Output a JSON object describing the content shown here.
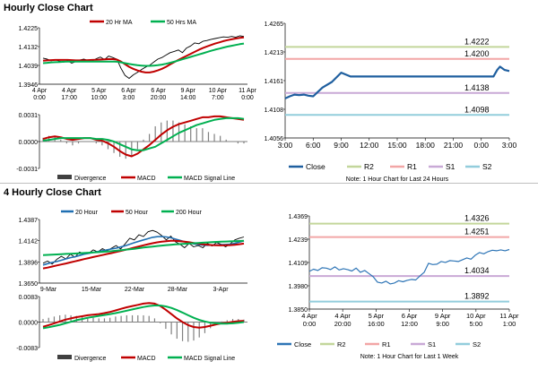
{
  "chart_data": [
    {
      "id": "hourly_price",
      "type": "line",
      "section_title": "Hourly Close Chart",
      "legend": [
        "20 Hr MA",
        "50 Hrs MA"
      ],
      "colors": {
        "price": "#000000",
        "ma1": "#c00000",
        "ma2": "#00b050"
      },
      "ylim": [
        1.3946,
        1.4225
      ],
      "yticks": [
        "1.4225",
        "1.4132",
        "1.4039",
        "1.3946"
      ],
      "xlabels": [
        [
          "4 Apr",
          "0:00"
        ],
        [
          "4 Apr",
          "17:00"
        ],
        [
          "5 Apr",
          "10:00"
        ],
        [
          "6 Apr",
          "3:00"
        ],
        [
          "6 Apr",
          "20:00"
        ],
        [
          "9 Apr",
          "14:00"
        ],
        [
          "10 Apr",
          "7:00"
        ],
        [
          "11 Apr",
          "0:00"
        ]
      ],
      "series": [
        {
          "name": "Close",
          "values": [
            1.4075,
            1.407,
            1.4062,
            1.4068,
            1.406,
            1.4055,
            1.4062,
            1.405,
            1.4058,
            1.4066,
            1.407,
            1.4064,
            1.406,
            1.4072,
            1.408,
            1.4068,
            1.4085,
            1.4078,
            1.407,
            1.4025,
            1.399,
            1.3975,
            1.3992,
            1.4004,
            1.4018,
            1.403,
            1.404,
            1.4055,
            1.407,
            1.4078,
            1.409,
            1.4102,
            1.4108,
            1.4115,
            1.4102,
            1.4125,
            1.4135,
            1.415,
            1.4146,
            1.4158,
            1.4162,
            1.4168,
            1.4172,
            1.4176,
            1.418,
            1.4178,
            1.4182,
            1.4178,
            1.4185,
            1.4182
          ]
        },
        {
          "name": "20 Hr MA",
          "values": [
            1.4062,
            1.4064,
            1.4065,
            1.4066,
            1.4066,
            1.4066,
            1.4066,
            1.4065,
            1.4064,
            1.4064,
            1.4064,
            1.4065,
            1.4066,
            1.4067,
            1.4068,
            1.4069,
            1.407,
            1.407,
            1.4068,
            1.4058,
            1.4045,
            1.4032,
            1.4022,
            1.4014,
            1.4008,
            1.4004,
            1.4004,
            1.4008,
            1.4014,
            1.4022,
            1.4032,
            1.4044,
            1.4055,
            1.4066,
            1.4076,
            1.4086,
            1.4096,
            1.4106,
            1.4116,
            1.4125,
            1.4133,
            1.414,
            1.4147,
            1.4153,
            1.4159,
            1.4164,
            1.4168,
            1.4172,
            1.4175,
            1.4177
          ]
        },
        {
          "name": "50 Hrs MA",
          "values": [
            1.405,
            1.4052,
            1.4054,
            1.4055,
            1.4056,
            1.4057,
            1.4058,
            1.4058,
            1.4058,
            1.4058,
            1.4058,
            1.4058,
            1.4058,
            1.4058,
            1.4058,
            1.4058,
            1.4058,
            1.4058,
            1.4057,
            1.4054,
            1.405,
            1.4046,
            1.4043,
            1.404,
            1.4038,
            1.4037,
            1.4037,
            1.4038,
            1.404,
            1.4043,
            1.4047,
            1.4052,
            1.4057,
            1.4063,
            1.4069,
            1.4075,
            1.4081,
            1.4087,
            1.4093,
            1.4099,
            1.4105,
            1.4111,
            1.4117,
            1.4122,
            1.4127,
            1.4132,
            1.4136,
            1.414,
            1.4144,
            1.4147
          ]
        }
      ]
    },
    {
      "id": "hourly_macd",
      "type": "line",
      "ylim": [
        -0.0031,
        0.0031
      ],
      "yticks": [
        "0.0031",
        "0.0000",
        "-0.0031"
      ],
      "legend": [
        "Divergence",
        "MACD",
        "MACD Signal Line"
      ],
      "colors": {
        "div": "#808080",
        "macd": "#c00000",
        "signal": "#00b050"
      },
      "series": [
        {
          "name": "MACD",
          "values": [
            0.0003,
            0.0005,
            0.0006,
            0.0005,
            0.0003,
            0.0002,
            0.0003,
            0.0004,
            0.0004,
            0.0002,
            0.0001,
            -0.0002,
            -0.0006,
            -0.0011,
            -0.0015,
            -0.0017,
            -0.0014,
            -0.0009,
            -0.0004,
            0.0002,
            0.0008,
            0.0013,
            0.0017,
            0.002,
            0.0022,
            0.0024,
            0.0026,
            0.0028,
            0.0028,
            0.0029,
            0.0029,
            0.0028,
            0.0027,
            0.0026,
            0.0025
          ]
        },
        {
          "name": "MACD Signal Line",
          "values": [
            0.0001,
            0.0002,
            0.0003,
            0.0004,
            0.0004,
            0.0004,
            0.0004,
            0.0004,
            0.0004,
            0.0003,
            0.0003,
            0.0002,
            0.0,
            -0.0003,
            -0.0006,
            -0.0009,
            -0.001,
            -0.001,
            -0.0008,
            -0.0006,
            -0.0002,
            0.0002,
            0.0006,
            0.001,
            0.0013,
            0.0016,
            0.0019,
            0.0021,
            0.0023,
            0.0025,
            0.0026,
            0.0027,
            0.0027,
            0.0027,
            0.0026
          ]
        }
      ]
    },
    {
      "id": "hourly_levels",
      "type": "line",
      "ylim": [
        1.4056,
        1.4265
      ],
      "yticks": [
        "1.4265",
        "1.4213",
        "1.4161",
        "1.4108",
        "1.4056"
      ],
      "xlabels": [
        "3:00",
        "6:00",
        "9:00",
        "12:00",
        "15:00",
        "18:00",
        "21:00",
        "0:00",
        "3:00"
      ],
      "levels": [
        {
          "name": "R2",
          "value": 1.4222,
          "label": "1.4222",
          "color": "#c3d69b"
        },
        {
          "name": "R1",
          "value": 1.42,
          "label": "1.4200",
          "color": "#f2a6a6"
        },
        {
          "name": "S1",
          "value": 1.4138,
          "label": "1.4138",
          "color": "#c9a9d6"
        },
        {
          "name": "S2",
          "value": 1.4098,
          "label": "1.4098",
          "color": "#92cddc"
        }
      ],
      "series": [
        {
          "name": "Close",
          "color": "#1f5f9f",
          "x": [
            0,
            0.5,
            1,
            1.5,
            2,
            2.5,
            3,
            3.5,
            4,
            5,
            6,
            7,
            7.5,
            8,
            8.5,
            9,
            10,
            11,
            12,
            13,
            14,
            15,
            16,
            17,
            18,
            19,
            20,
            21,
            22,
            22.3,
            22.7,
            23,
            23.5,
            24
          ],
          "values": [
            1.4128,
            1.4132,
            1.4135,
            1.4134,
            1.4135,
            1.4133,
            1.4132,
            1.414,
            1.4148,
            1.4158,
            1.4175,
            1.4168,
            1.4168,
            1.4168,
            1.4168,
            1.4168,
            1.4168,
            1.4168,
            1.4168,
            1.4168,
            1.4168,
            1.4168,
            1.4168,
            1.4168,
            1.4168,
            1.4168,
            1.4168,
            1.4168,
            1.4168,
            1.4168,
            1.418,
            1.4186,
            1.418,
            1.4178
          ]
        }
      ],
      "legend": [
        "Close",
        "R2",
        "R1",
        "S1",
        "S2"
      ],
      "note": "Note: 1 Hour Chart for Last 24 Hours"
    },
    {
      "id": "4h_price",
      "type": "line",
      "section_title": "4 Hourly Close Chart",
      "legend": [
        "20 Hour",
        "50 Hour",
        "200 Hour"
      ],
      "colors": {
        "price": "#000000",
        "ma20": "#1f6fb2",
        "ma50": "#c00000",
        "ma200": "#00b050"
      },
      "ylim": [
        1.365,
        1.4387
      ],
      "yticks": [
        "1.4387",
        "1.4142",
        "1.3896",
        "1.3650"
      ],
      "xlabels": [
        "9-Mar",
        "15-Mar",
        "22-Mar",
        "28-Mar",
        "3-Apr"
      ],
      "series": [
        {
          "name": "Close",
          "values": [
            1.388,
            1.3905,
            1.387,
            1.3925,
            1.396,
            1.393,
            1.3985,
            1.395,
            1.401,
            1.3985,
            1.3995,
            1.4035,
            1.401,
            1.405,
            1.4025,
            1.4055,
            1.4085,
            1.4045,
            1.4105,
            1.417,
            1.415,
            1.421,
            1.419,
            1.4245,
            1.426,
            1.424,
            1.42,
            1.415,
            1.4195,
            1.413,
            1.41,
            1.406,
            1.411,
            1.407,
            1.4085,
            1.406,
            1.411,
            1.408,
            1.412,
            1.41,
            1.407,
            1.4105,
            1.415,
            1.417,
            1.4185
          ]
        },
        {
          "name": "20 Hour",
          "values": [
            1.386,
            1.3875,
            1.389,
            1.39,
            1.3915,
            1.393,
            1.3945,
            1.3955,
            1.397,
            1.3985,
            1.3995,
            1.4005,
            1.4015,
            1.4025,
            1.4035,
            1.4045,
            1.4055,
            1.4068,
            1.4082,
            1.41,
            1.4118,
            1.4135,
            1.415,
            1.4165,
            1.418,
            1.4188,
            1.419,
            1.4185,
            1.4175,
            1.416,
            1.4145,
            1.413,
            1.4118,
            1.4105,
            1.4095,
            1.409,
            1.4088,
            1.409,
            1.4092,
            1.4095,
            1.4097,
            1.41,
            1.411,
            1.4125,
            1.414
          ]
        },
        {
          "name": "50 Hour",
          "values": [
            1.382,
            1.383,
            1.3842,
            1.3855,
            1.3866,
            1.3877,
            1.389,
            1.3902,
            1.3915,
            1.3928,
            1.394,
            1.3952,
            1.3963,
            1.3975,
            1.3987,
            1.3998,
            1.401,
            1.4022,
            1.4035,
            1.4048,
            1.4062,
            1.4075,
            1.4088,
            1.41,
            1.4112,
            1.4122,
            1.413,
            1.4136,
            1.414,
            1.414,
            1.4136,
            1.413,
            1.4123,
            1.4115,
            1.4108,
            1.41,
            1.4095,
            1.409,
            1.4088,
            1.4087,
            1.4088,
            1.409,
            1.4094,
            1.41,
            1.4108
          ]
        },
        {
          "name": "200 Hour",
          "values": [
            1.3975,
            1.3977,
            1.398,
            1.3982,
            1.3985,
            1.3988,
            1.399,
            1.3993,
            1.3996,
            1.3999,
            1.4002,
            1.4005,
            1.4008,
            1.4012,
            1.4016,
            1.402,
            1.4025,
            1.403,
            1.4036,
            1.4042,
            1.4048,
            1.4055,
            1.4062,
            1.4068,
            1.4074,
            1.408,
            1.4085,
            1.409,
            1.4094,
            1.4098,
            1.4102,
            1.4106,
            1.4109,
            1.4112,
            1.4115,
            1.4118,
            1.4121,
            1.4124,
            1.4127,
            1.413,
            1.4132,
            1.4134,
            1.4136,
            1.4138,
            1.414
          ]
        }
      ]
    },
    {
      "id": "4h_macd",
      "type": "line",
      "ylim": [
        -0.0083,
        0.0083
      ],
      "yticks": [
        "0.0083",
        "0.0000",
        "-0.0083"
      ],
      "legend": [
        "Divergence",
        "MACD",
        "MACD Signal Line"
      ],
      "colors": {
        "div": "#808080",
        "macd": "#c00000",
        "signal": "#00b050"
      },
      "series": [
        {
          "name": "MACD",
          "values": [
            -0.0015,
            -0.001,
            -0.0004,
            0.0002,
            0.0008,
            0.0012,
            0.0016,
            0.0019,
            0.0022,
            0.0024,
            0.0026,
            0.0029,
            0.0033,
            0.0038,
            0.0043,
            0.0048,
            0.0052,
            0.0056,
            0.006,
            0.0062,
            0.006,
            0.0052,
            0.004,
            0.0026,
            0.0012,
            0.0,
            -0.001,
            -0.0016,
            -0.0018,
            -0.0016,
            -0.0012,
            -0.0008,
            -0.0004,
            -0.0002,
            0.0001,
            0.0003,
            0.0004
          ]
        },
        {
          "name": "MACD Signal Line",
          "values": [
            -0.002,
            -0.0017,
            -0.0013,
            -0.0009,
            -0.0004,
            0.0001,
            0.0006,
            0.001,
            0.0014,
            0.0017,
            0.002,
            0.0023,
            0.0026,
            0.0029,
            0.0033,
            0.0037,
            0.0041,
            0.0045,
            0.0049,
            0.0052,
            0.0054,
            0.0054,
            0.0051,
            0.0046,
            0.0039,
            0.0031,
            0.0022,
            0.0014,
            0.0007,
            0.0002,
            -0.0002,
            -0.0004,
            -0.0005,
            -0.0005,
            -0.0004,
            -0.0002,
            0.0
          ]
        }
      ]
    },
    {
      "id": "4h_levels",
      "type": "line",
      "ylim": [
        1.385,
        1.4369
      ],
      "yticks": [
        "1.4369",
        "1.4239",
        "1.4109",
        "1.3980",
        "1.3850"
      ],
      "xlabels": [
        [
          "4 Apr",
          "0:00"
        ],
        [
          "4 Apr",
          "20:00"
        ],
        [
          "5 Apr",
          "16:00"
        ],
        [
          "6 Apr",
          "12:00"
        ],
        [
          "9 Apr",
          "9:00"
        ],
        [
          "10 Apr",
          "5:00"
        ],
        [
          "11 Apr",
          "1:00"
        ]
      ],
      "levels": [
        {
          "name": "R2",
          "value": 1.4326,
          "label": "1.4326",
          "color": "#c3d69b"
        },
        {
          "name": "R1",
          "value": 1.4251,
          "label": "1.4251",
          "color": "#f2a6a6"
        },
        {
          "name": "S1",
          "value": 1.4034,
          "label": "1.4034",
          "color": "#c9a9d6"
        },
        {
          "name": "S2",
          "value": 1.3892,
          "label": "1.3892",
          "color": "#92cddc"
        }
      ],
      "series": [
        {
          "name": "Close",
          "color": "#2e75b6",
          "values": [
            1.406,
            1.4072,
            1.4065,
            1.408,
            1.4078,
            1.407,
            1.4085,
            1.4068,
            1.4075,
            1.407,
            1.4062,
            1.4078,
            1.4055,
            1.4065,
            1.4048,
            1.403,
            1.4,
            1.3995,
            1.4005,
            1.399,
            1.3995,
            1.4008,
            1.4002,
            1.401,
            1.4015,
            1.4012,
            1.4035,
            1.4055,
            1.4105,
            1.4098,
            1.41,
            1.4115,
            1.411,
            1.412,
            1.4118,
            1.4115,
            1.4125,
            1.4135,
            1.4128,
            1.415,
            1.4165,
            1.4158,
            1.417,
            1.4178,
            1.4175,
            1.418,
            1.4175,
            1.4182
          ]
        }
      ],
      "legend": [
        "Close",
        "R2",
        "R1",
        "S1",
        "S2"
      ],
      "note": "Note: 1 Hour Chart for Last 1 Week"
    }
  ]
}
